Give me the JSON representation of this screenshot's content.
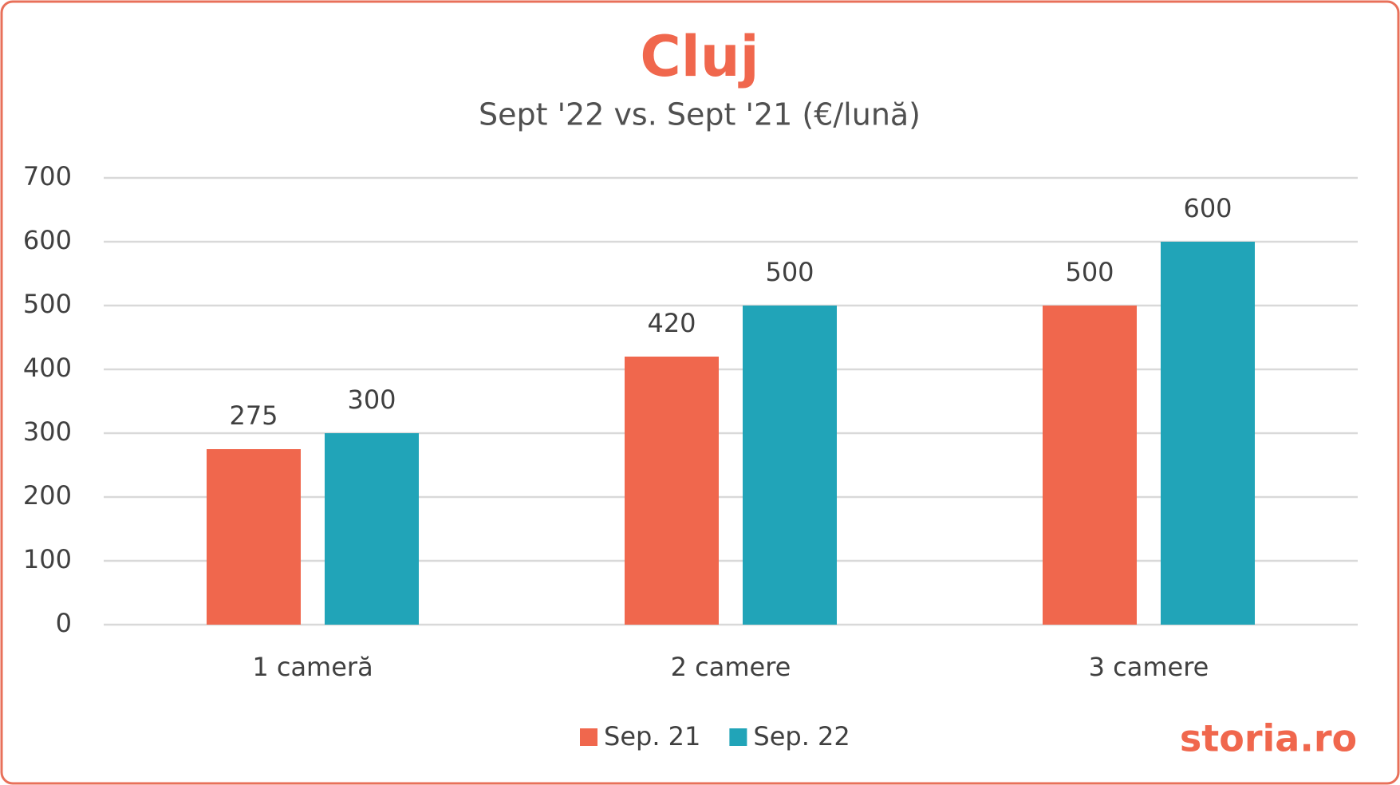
{
  "chart_data": {
    "type": "bar",
    "title": "Cluj",
    "subtitle": "Sept '22 vs. Sept '21 (€/lună)",
    "categories": [
      "1 cameră",
      "2 camere",
      "3 camere"
    ],
    "series": [
      {
        "name": "Sep. 21",
        "color": "#f0674d",
        "values": [
          275,
          420,
          500
        ]
      },
      {
        "name": "Sep. 22",
        "color": "#21a4b8",
        "values": [
          300,
          500,
          600
        ]
      }
    ],
    "ylim": [
      0,
      700
    ],
    "yticks": [
      0,
      100,
      200,
      300,
      400,
      500,
      600,
      700
    ],
    "grid": true,
    "legend": "bottom",
    "brand": "storia.ro"
  }
}
